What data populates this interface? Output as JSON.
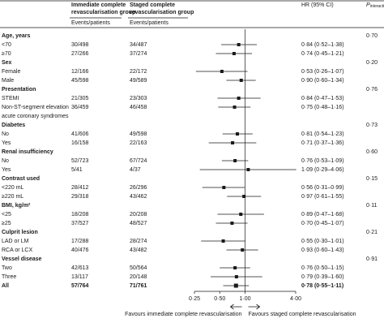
{
  "chart_data": {
    "type": "forest",
    "headers": {
      "immediate": [
        "Immediate complete",
        "revascularisation group"
      ],
      "staged": [
        "Staged complete",
        "revascularisation group"
      ],
      "events": "Events/patients",
      "hr": "HR (95% CI)",
      "p": [
        "P",
        "interaction"
      ]
    },
    "rows": [
      {
        "label": "Age, years",
        "p": "0·70"
      },
      {
        "label": "<70",
        "immediate": "30/498",
        "staged": "34/487",
        "hr": 0.84,
        "ci": [
          0.52,
          1.38
        ],
        "hr_label": "0·84 (0·52–1·38)"
      },
      {
        "label": "≥70",
        "immediate": "27/266",
        "staged": "37/274",
        "hr": 0.74,
        "ci": [
          0.45,
          1.21
        ],
        "hr_label": "0·74 (0·45–1·21)"
      },
      {
        "label": "Sex",
        "p": "0·20"
      },
      {
        "label": "Female",
        "immediate": "12/166",
        "staged": "22/172",
        "hr": 0.53,
        "ci": [
          0.26,
          1.07
        ],
        "hr_label": "0·53 (0·26–1·07)"
      },
      {
        "label": "Male",
        "immediate": "45/598",
        "staged": "49/589",
        "hr": 0.9,
        "ci": [
          0.6,
          1.34
        ],
        "hr_label": "0·90 (0·60–1·34)"
      },
      {
        "label": "Presentation",
        "p": "0·76"
      },
      {
        "label": "STEMI",
        "immediate": "21/305",
        "staged": "23/303",
        "hr": 0.84,
        "ci": [
          0.47,
          1.53
        ],
        "hr_label": "0·84 (0·47–1·53)"
      },
      {
        "label": [
          "Non-ST-segment elevation",
          "acute coronary syndromes"
        ],
        "immediate": "36/459",
        "staged": "46/458",
        "hr": 0.75,
        "ci": [
          0.48,
          1.16
        ],
        "hr_label": "0·75 (0·48–1·16)"
      },
      {
        "label": "Diabetes",
        "p": "0·73"
      },
      {
        "label": "No",
        "immediate": "41/606",
        "staged": "49/598",
        "hr": 0.81,
        "ci": [
          0.54,
          1.23
        ],
        "hr_label": "0·81 (0·54–1·23)"
      },
      {
        "label": "Yes",
        "immediate": "16/158",
        "staged": "22/163",
        "hr": 0.71,
        "ci": [
          0.37,
          1.36
        ],
        "hr_label": "0·71 (0·37–1·36)"
      },
      {
        "label": "Renal insufficiency",
        "p": "0·60"
      },
      {
        "label": "No",
        "immediate": "52/723",
        "staged": "67/724",
        "hr": 0.76,
        "ci": [
          0.53,
          1.09
        ],
        "hr_label": "0·76 (0·53–1·09)"
      },
      {
        "label": "Yes",
        "immediate": "5/41",
        "staged": "4/37",
        "hr": 1.09,
        "ci": [
          0.29,
          4.06
        ],
        "hr_label": "1·09 (0·29–4·06)"
      },
      {
        "label": "Contrast used",
        "p": "0·15"
      },
      {
        "label": "<220 mL",
        "immediate": "28/412",
        "staged": "26/296",
        "hr": 0.56,
        "ci": [
          0.31,
          0.99
        ],
        "hr_label": "0·56 (0·31–0·99)"
      },
      {
        "label": "≥220 mL",
        "immediate": "29/318",
        "staged": "43/462",
        "hr": 0.97,
        "ci": [
          0.61,
          1.55
        ],
        "hr_label": "0·97 (0·61–1·55)"
      },
      {
        "label": "BMI, kg/m²",
        "p": "0·11"
      },
      {
        "label": "<25",
        "immediate": "18/208",
        "staged": "20/208",
        "hr": 0.89,
        "ci": [
          0.47,
          1.68
        ],
        "hr_label": "0·89 (0·47–1·68)"
      },
      {
        "label": "≥25",
        "immediate": "37/527",
        "staged": "48/527",
        "hr": 0.7,
        "ci": [
          0.45,
          1.07
        ],
        "hr_label": "0·70 (0·45–1·07)"
      },
      {
        "label": "Culprit lesion",
        "p": "0·21"
      },
      {
        "label": "LAD or LM",
        "immediate": "17/288",
        "staged": "28/274",
        "hr": 0.55,
        "ci": [
          0.3,
          1.01
        ],
        "hr_label": "0·55 (0·30–1·01)"
      },
      {
        "label": "RCA or LCX",
        "immediate": "40/476",
        "staged": "43/482",
        "hr": 0.93,
        "ci": [
          0.6,
          1.43
        ],
        "hr_label": "0·93 (0·60–1·43)"
      },
      {
        "label": "Vessel disease",
        "p": "0·91"
      },
      {
        "label": "Two",
        "immediate": "42/613",
        "staged": "50/564",
        "hr": 0.76,
        "ci": [
          0.5,
          1.15
        ],
        "hr_label": "0·76 (0·50–1·15)"
      },
      {
        "label": "Three",
        "immediate": "13/117",
        "staged": "20/148",
        "hr": 0.79,
        "ci": [
          0.39,
          1.6
        ],
        "hr_label": "0·79 (0·39–1·60)"
      },
      {
        "label": "All",
        "immediate": "57/764",
        "staged": "71/761",
        "hr": 0.78,
        "ci": [
          0.55,
          1.11
        ],
        "hr_label": "0·78 (0·55–1·11)",
        "overall": true
      }
    ],
    "log_x": true,
    "xlim": [
      0.25,
      4
    ],
    "xticks": [
      {
        "value": 0.25,
        "label": "0·25"
      },
      {
        "value": 0.5,
        "label": "0·50"
      },
      {
        "value": 1,
        "label": "1·00"
      },
      {
        "value": 4,
        "label": "4·00"
      }
    ],
    "reference": 1,
    "favours_left": "Favours immediate complete revascularisation",
    "favours_right": "Favours staged complete revascularisation",
    "color": "#1a1a1a"
  }
}
